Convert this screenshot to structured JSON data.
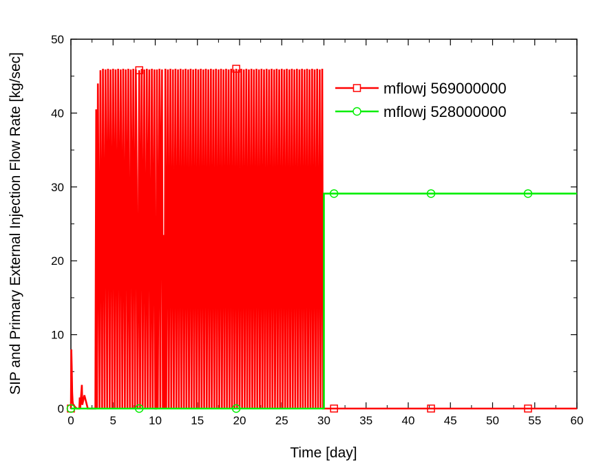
{
  "chart_data": {
    "type": "line",
    "xlabel": "Time [day]",
    "ylabel": "SIP and Primary External Injection Flow Rate [kg/sec]",
    "xlim": [
      0,
      60
    ],
    "ylim": [
      0,
      50
    ],
    "x_ticks": [
      0,
      5,
      10,
      15,
      20,
      25,
      30,
      35,
      40,
      45,
      50,
      55,
      60
    ],
    "y_ticks": [
      0,
      10,
      20,
      30,
      40,
      50
    ],
    "x_tick_labels": [
      "0",
      "5",
      "10",
      "15",
      "20",
      "25",
      "30",
      "35",
      "40",
      "45",
      "50",
      "55",
      "60"
    ],
    "y_tick_labels": [
      "0",
      "10",
      "20",
      "30",
      "40",
      "50"
    ],
    "grid": false,
    "legend_position": "top-right",
    "series": [
      {
        "name": "mflowj 569000000",
        "color": "#ff0000",
        "marker": "square",
        "marker_x": [
          0,
          8.1,
          19.6,
          31.2,
          42.7,
          54.2
        ],
        "x": [
          0,
          0.05,
          0.1,
          0.15,
          0.2,
          0.25,
          0.35,
          0.5,
          0.7,
          1.0,
          1.05,
          1.1,
          1.3,
          1.35,
          1.6,
          2.0,
          2.9,
          3.0,
          3.1,
          3.2,
          3.3,
          3.4,
          3.5,
          3.6,
          3.7,
          3.8,
          3.9,
          4.0,
          4.1,
          4.2,
          4.3,
          4.4,
          4.5,
          4.6,
          4.7,
          4.8,
          4.9,
          5.0,
          5.1,
          5.2,
          5.3,
          5.4,
          5.5,
          5.6,
          5.7,
          5.8,
          5.9,
          6.0,
          6.1,
          6.2,
          6.3,
          6.4,
          6.5,
          6.6,
          6.7,
          6.8,
          6.9,
          7.0,
          7.1,
          7.2,
          7.3,
          7.4,
          7.5,
          7.6,
          7.7,
          7.8,
          7.9,
          8.0,
          8.1,
          8.2,
          8.3,
          8.4,
          8.5,
          8.6,
          8.7,
          8.8,
          8.9,
          9.0,
          9.1,
          9.2,
          9.3,
          9.4,
          9.5,
          9.6,
          9.7,
          9.8,
          9.9,
          10.0,
          10.1,
          10.2,
          10.3,
          10.4,
          10.5,
          10.6,
          10.7,
          10.8,
          10.9,
          11.0,
          11.1,
          11.2,
          11.3,
          11.4,
          11.5,
          11.6,
          11.7,
          11.8,
          11.9,
          12.0,
          12.1,
          12.2,
          12.3,
          12.4,
          12.5,
          12.6,
          12.7,
          12.8,
          12.9,
          13.0,
          13.1,
          13.2,
          13.3,
          13.4,
          13.5,
          13.6,
          13.7,
          13.8,
          13.9,
          14.0,
          14.1,
          14.2,
          14.3,
          14.4,
          14.5,
          14.6,
          14.7,
          14.8,
          14.9,
          15.0,
          15.1,
          15.2,
          15.3,
          15.4,
          15.5,
          15.6,
          15.7,
          15.8,
          15.9,
          16.0,
          16.1,
          16.2,
          16.3,
          16.4,
          16.5,
          16.6,
          16.7,
          16.8,
          16.9,
          17.0,
          17.1,
          17.2,
          17.3,
          17.4,
          17.5,
          17.6,
          17.7,
          17.8,
          17.9,
          18.0,
          18.1,
          18.2,
          18.3,
          18.4,
          18.5,
          18.6,
          18.7,
          18.8,
          18.9,
          19.0,
          19.1,
          19.2,
          19.3,
          19.4,
          19.5,
          19.6,
          19.7,
          19.8,
          19.9,
          20.0,
          20.1,
          20.2,
          20.3,
          20.4,
          20.5,
          20.6,
          20.7,
          20.8,
          20.9,
          21.0,
          21.1,
          21.2,
          21.3,
          21.4,
          21.5,
          21.6,
          21.7,
          21.8,
          21.9,
          22.0,
          22.1,
          22.2,
          22.3,
          22.4,
          22.5,
          22.6,
          22.7,
          22.8,
          22.9,
          23.0,
          23.1,
          23.2,
          23.3,
          23.4,
          23.5,
          23.6,
          23.7,
          23.8,
          23.9,
          24.0,
          24.1,
          24.2,
          24.3,
          24.4,
          24.5,
          24.6,
          24.7,
          24.8,
          24.9,
          25.0,
          25.1,
          25.2,
          25.3,
          25.4,
          25.5,
          25.6,
          25.7,
          25.8,
          25.9,
          26.0,
          26.1,
          26.2,
          26.3,
          26.4,
          26.5,
          26.6,
          26.7,
          26.8,
          26.9,
          27.0,
          27.1,
          27.2,
          27.3,
          27.4,
          27.5,
          27.6,
          27.7,
          27.8,
          27.9,
          28.0,
          28.1,
          28.2,
          28.3,
          28.4,
          28.5,
          28.6,
          28.7,
          28.8,
          28.9,
          29.0,
          29.1,
          29.2,
          29.3,
          29.4,
          29.5,
          29.6,
          29.7,
          29.8,
          29.9,
          30.0,
          60.0
        ],
        "y": [
          0,
          8.0,
          5.5,
          2.2,
          1.0,
          0.6,
          0.4,
          0.2,
          0,
          0,
          1.5,
          0,
          3.2,
          0.5,
          1.8,
          0,
          0,
          40.5,
          0,
          44.0,
          23.5,
          0,
          45.8,
          26.0,
          0,
          46.0,
          26.2,
          0,
          45.9,
          31.2,
          0,
          46.0,
          31.0,
          0,
          45.9,
          29.8,
          0,
          46.0,
          31.2,
          0,
          45.9,
          28.5,
          0,
          46.0,
          31.0,
          0,
          45.9,
          28.5,
          0,
          46.0,
          25.5,
          0,
          45.9,
          30.8,
          0,
          46.0,
          19.2,
          0,
          45.9,
          31.2,
          0,
          46.0,
          28.4,
          0,
          45.9,
          31.0,
          0,
          19.0,
          45.8,
          0,
          30.5,
          46.0,
          0,
          25.5,
          45.9,
          0,
          21.5,
          46.0,
          0,
          30.5,
          45.9,
          0,
          19.0,
          46.0,
          0,
          24.5,
          45.9,
          0,
          0,
          45.9,
          0,
          23.5,
          46.0,
          0,
          35.0,
          45.9,
          0,
          23.5,
          0,
          46.0,
          0,
          23.5,
          45.9,
          0,
          23.5,
          46.0,
          0,
          23.5,
          45.9,
          0,
          23.5,
          46.0,
          0,
          23.5,
          45.9,
          0,
          23.5,
          46.0,
          0,
          23.5,
          45.9,
          0,
          23.5,
          46.0,
          0,
          23.5,
          45.9,
          0,
          23.5,
          46.0,
          0,
          23.5,
          45.9,
          0,
          23.5,
          46.0,
          0,
          23.5,
          45.9,
          0,
          23.5,
          46.0,
          0,
          23.5,
          45.9,
          0,
          23.5,
          46.0,
          0,
          23.5,
          45.9,
          0,
          23.5,
          46.0,
          0,
          23.5,
          45.9,
          0,
          23.5,
          46.0,
          0,
          23.5,
          45.9,
          0,
          23.5,
          46.0,
          0,
          23.5,
          45.9,
          0,
          23.5,
          46.0,
          0,
          23.5,
          45.9,
          0,
          23.5,
          46.0,
          0,
          23.5,
          45.9,
          0,
          23.5,
          46.0,
          0,
          23.5,
          45.9,
          0,
          23.5,
          46.0,
          0,
          23.5,
          45.9,
          0,
          23.5,
          46.0,
          0,
          23.5,
          45.9,
          0,
          23.5,
          46.0,
          0,
          23.5,
          45.9,
          0,
          23.5,
          46.0,
          0,
          23.5,
          45.9,
          0,
          23.5,
          46.0,
          0,
          23.5,
          45.9,
          0,
          23.5,
          46.0,
          0,
          23.5,
          45.9,
          0,
          23.5,
          46.0,
          0,
          23.5,
          45.9,
          0,
          23.5,
          46.0,
          0,
          23.5,
          45.9,
          0,
          23.5,
          46.0,
          0,
          23.5,
          45.9,
          0,
          23.5,
          46.0,
          0,
          23.5,
          45.9,
          0,
          23.5,
          46.0,
          0,
          23.5,
          45.9,
          0,
          23.5,
          46.0,
          0,
          23.5,
          45.9,
          0,
          23.5,
          46.0,
          0,
          23.5,
          45.9,
          0,
          23.5,
          46.0,
          0,
          23.5,
          45.9,
          0,
          23.5,
          46.0,
          0,
          23.5,
          45.9,
          0,
          23.5,
          46.0,
          0,
          23.5,
          45.9,
          0,
          23.5,
          46.0,
          0,
          0,
          0
        ]
      },
      {
        "name": "mflowj 528000000",
        "color": "#00ee00",
        "marker": "circle",
        "marker_x": [
          0,
          8.1,
          19.6,
          31.2,
          42.7,
          54.2
        ],
        "x": [
          0,
          30.0,
          30.0,
          60.0
        ],
        "y": [
          0,
          0,
          29.1,
          29.1
        ]
      }
    ]
  }
}
